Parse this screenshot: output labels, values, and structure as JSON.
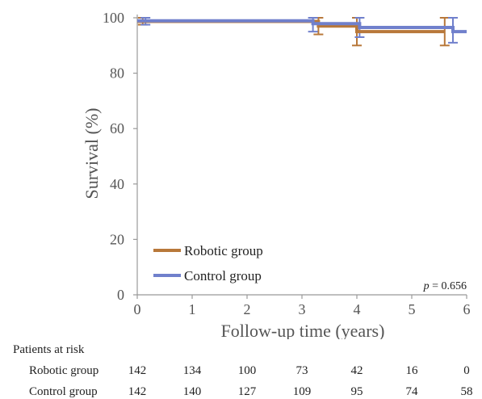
{
  "chart_data": {
    "type": "line",
    "step": true,
    "ylabel": "Survival (%)",
    "xlabel": "Follow-up time (years)",
    "xlim": [
      0,
      6
    ],
    "ylim": [
      0,
      100
    ],
    "xticks": [
      0,
      1,
      2,
      3,
      4,
      5,
      6
    ],
    "yticks": [
      0,
      20,
      40,
      60,
      80,
      100
    ],
    "grid": false,
    "legend_position": "bottom-left",
    "annotation": {
      "label": "p",
      "text": " = 0.656"
    },
    "series": [
      {
        "name": "Robotic group",
        "color": "#b8783a",
        "x": [
          0,
          3.3,
          4.0,
          5.6,
          5.6
        ],
        "y": [
          98.7,
          97.0,
          95.0,
          95.0,
          95.0
        ],
        "ci": [
          {
            "x": 0.1,
            "y": 98.7,
            "low": 97.5,
            "high": 100
          },
          {
            "x": 3.3,
            "y": 97.0,
            "low": 94.0,
            "high": 100
          },
          {
            "x": 4.0,
            "y": 95.0,
            "low": 90.0,
            "high": 100
          },
          {
            "x": 5.6,
            "y": 95.0,
            "low": 90.0,
            "high": 100
          }
        ]
      },
      {
        "name": "Control group",
        "color": "#7080cc",
        "x": [
          0,
          3.2,
          4.05,
          5.75,
          6.0
        ],
        "y": [
          98.9,
          97.9,
          96.5,
          95.0,
          95.0
        ],
        "ci": [
          {
            "x": 0.15,
            "y": 98.9,
            "low": 97.5,
            "high": 100
          },
          {
            "x": 3.2,
            "y": 97.9,
            "low": 95.0,
            "high": 100
          },
          {
            "x": 4.05,
            "y": 96.5,
            "low": 93.0,
            "high": 100
          },
          {
            "x": 5.75,
            "y": 95.0,
            "low": 91.0,
            "high": 100
          }
        ]
      }
    ]
  },
  "risk_table": {
    "title": "Patients at risk",
    "rows": [
      {
        "label": "Robotic group",
        "values": [
          "142",
          "134",
          "100",
          "73",
          "42",
          "16",
          "0"
        ]
      },
      {
        "label": "Control group",
        "values": [
          "142",
          "140",
          "127",
          "109",
          "95",
          "74",
          "58"
        ]
      }
    ]
  }
}
